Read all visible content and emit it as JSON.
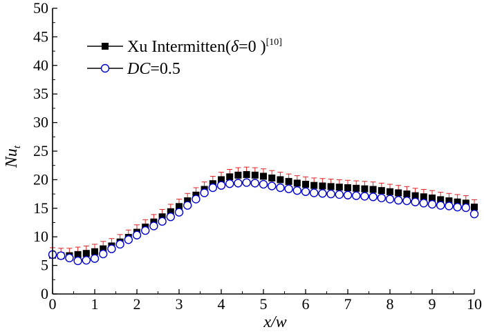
{
  "chart_data": {
    "type": "scatter",
    "title": "",
    "xlabel": "x/w",
    "ylabel": {
      "main": "Nu",
      "subscript": "t"
    },
    "xlim": [
      0,
      10
    ],
    "ylim": [
      0,
      50
    ],
    "xticks": [
      "0",
      "1",
      "2",
      "3",
      "4",
      "5",
      "6",
      "7",
      "8",
      "9",
      "10"
    ],
    "yticks": [
      "0",
      "5",
      "10",
      "15",
      "20",
      "25",
      "30",
      "35",
      "40",
      "45",
      "50"
    ],
    "legend_position": "top-left",
    "colors": {
      "series1": "#000000",
      "series2": "#0000cc",
      "error_bars": "#e02020",
      "axes": "#000000"
    },
    "series": [
      {
        "name": "Xu Intermitten",
        "legend": {
          "prefix": "Xu Intermitten(",
          "delta": "δ",
          "suffix": "=0 )",
          "ref": "[10]"
        },
        "marker": "filled-square",
        "error": 1.3,
        "x": [
          0.0,
          0.2,
          0.4,
          0.6,
          0.8,
          1.0,
          1.2,
          1.4,
          1.6,
          1.8,
          2.0,
          2.2,
          2.4,
          2.6,
          2.8,
          3.0,
          3.2,
          3.4,
          3.6,
          3.8,
          4.0,
          4.2,
          4.4,
          4.6,
          4.8,
          5.0,
          5.2,
          5.4,
          5.6,
          5.8,
          6.0,
          6.2,
          6.4,
          6.6,
          6.8,
          7.0,
          7.2,
          7.4,
          7.6,
          7.8,
          8.0,
          8.2,
          8.4,
          8.6,
          8.8,
          9.0,
          9.2,
          9.4,
          9.6,
          9.8,
          10.0
        ],
        "y": [
          6.8,
          6.7,
          6.7,
          6.9,
          7.1,
          7.4,
          7.9,
          8.4,
          9.1,
          9.9,
          10.8,
          11.7,
          12.6,
          13.5,
          14.4,
          15.3,
          16.3,
          17.3,
          18.3,
          19.3,
          20.0,
          20.5,
          20.8,
          20.9,
          20.8,
          20.6,
          20.3,
          20.0,
          19.7,
          19.4,
          19.2,
          19.0,
          18.9,
          18.8,
          18.7,
          18.6,
          18.5,
          18.4,
          18.3,
          18.1,
          17.9,
          17.7,
          17.5,
          17.2,
          17.0,
          16.8,
          16.5,
          16.3,
          16.1,
          15.9,
          15.2
        ]
      },
      {
        "name": "DC=0.5",
        "legend": {
          "italic": "DC",
          "suffix": "=0.5"
        },
        "marker": "open-circle",
        "x": [
          0.0,
          0.2,
          0.4,
          0.6,
          0.8,
          1.0,
          1.2,
          1.4,
          1.6,
          1.8,
          2.0,
          2.2,
          2.4,
          2.6,
          2.8,
          3.0,
          3.2,
          3.4,
          3.6,
          3.8,
          4.0,
          4.2,
          4.4,
          4.6,
          4.8,
          5.0,
          5.2,
          5.4,
          5.6,
          5.8,
          6.0,
          6.2,
          6.4,
          6.6,
          6.8,
          7.0,
          7.2,
          7.4,
          7.6,
          7.8,
          8.0,
          8.2,
          8.4,
          8.6,
          8.8,
          9.0,
          9.2,
          9.4,
          9.6,
          9.8,
          10.0
        ],
        "y": [
          6.9,
          6.7,
          6.3,
          5.8,
          5.9,
          6.2,
          7.0,
          7.9,
          8.7,
          9.5,
          10.3,
          11.1,
          11.9,
          12.7,
          13.5,
          14.3,
          15.5,
          16.6,
          17.7,
          18.6,
          19.0,
          19.3,
          19.4,
          19.5,
          19.4,
          19.2,
          18.9,
          18.6,
          18.4,
          18.1,
          17.9,
          17.7,
          17.6,
          17.5,
          17.4,
          17.3,
          17.2,
          17.1,
          17.0,
          16.8,
          16.6,
          16.4,
          16.3,
          16.1,
          15.9,
          15.7,
          15.5,
          15.4,
          15.2,
          15.1,
          14.0
        ]
      }
    ]
  }
}
